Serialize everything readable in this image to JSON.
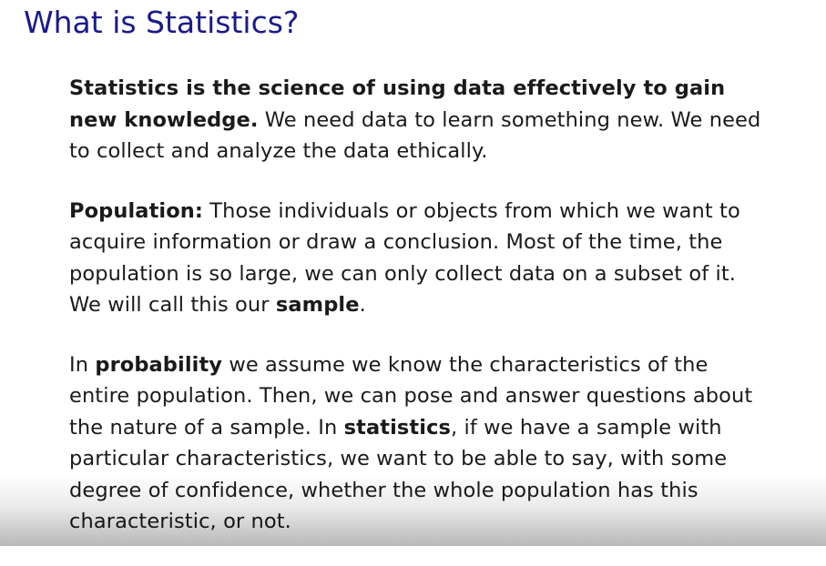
{
  "slide": {
    "title": "What is Statistics?",
    "p1": {
      "bold": "Statistics is the science of using data effectively to gain new knowledge.",
      "rest": " We need data to learn something new. We need to collect and analyze the data ethically."
    },
    "p2": {
      "bold": "Population:",
      "text1": " Those individuals or objects from which we want to acquire information or draw a conclusion. Most of the time, the population is so large, we can only collect data on a subset of it. We will call this our ",
      "bold2": "sample",
      "text2": "."
    },
    "p3": {
      "text1": "In ",
      "bold1": "probability",
      "text2": " we assume we know the characteristics of the entire population. Then, we can pose and answer questions about the nature of a sample. In ",
      "bold2": "statistics",
      "text3": ", if we have a sample with particular characteristics, we want to be able to say, with some degree of confidence, whether the whole population has this characteristic, or not."
    }
  }
}
